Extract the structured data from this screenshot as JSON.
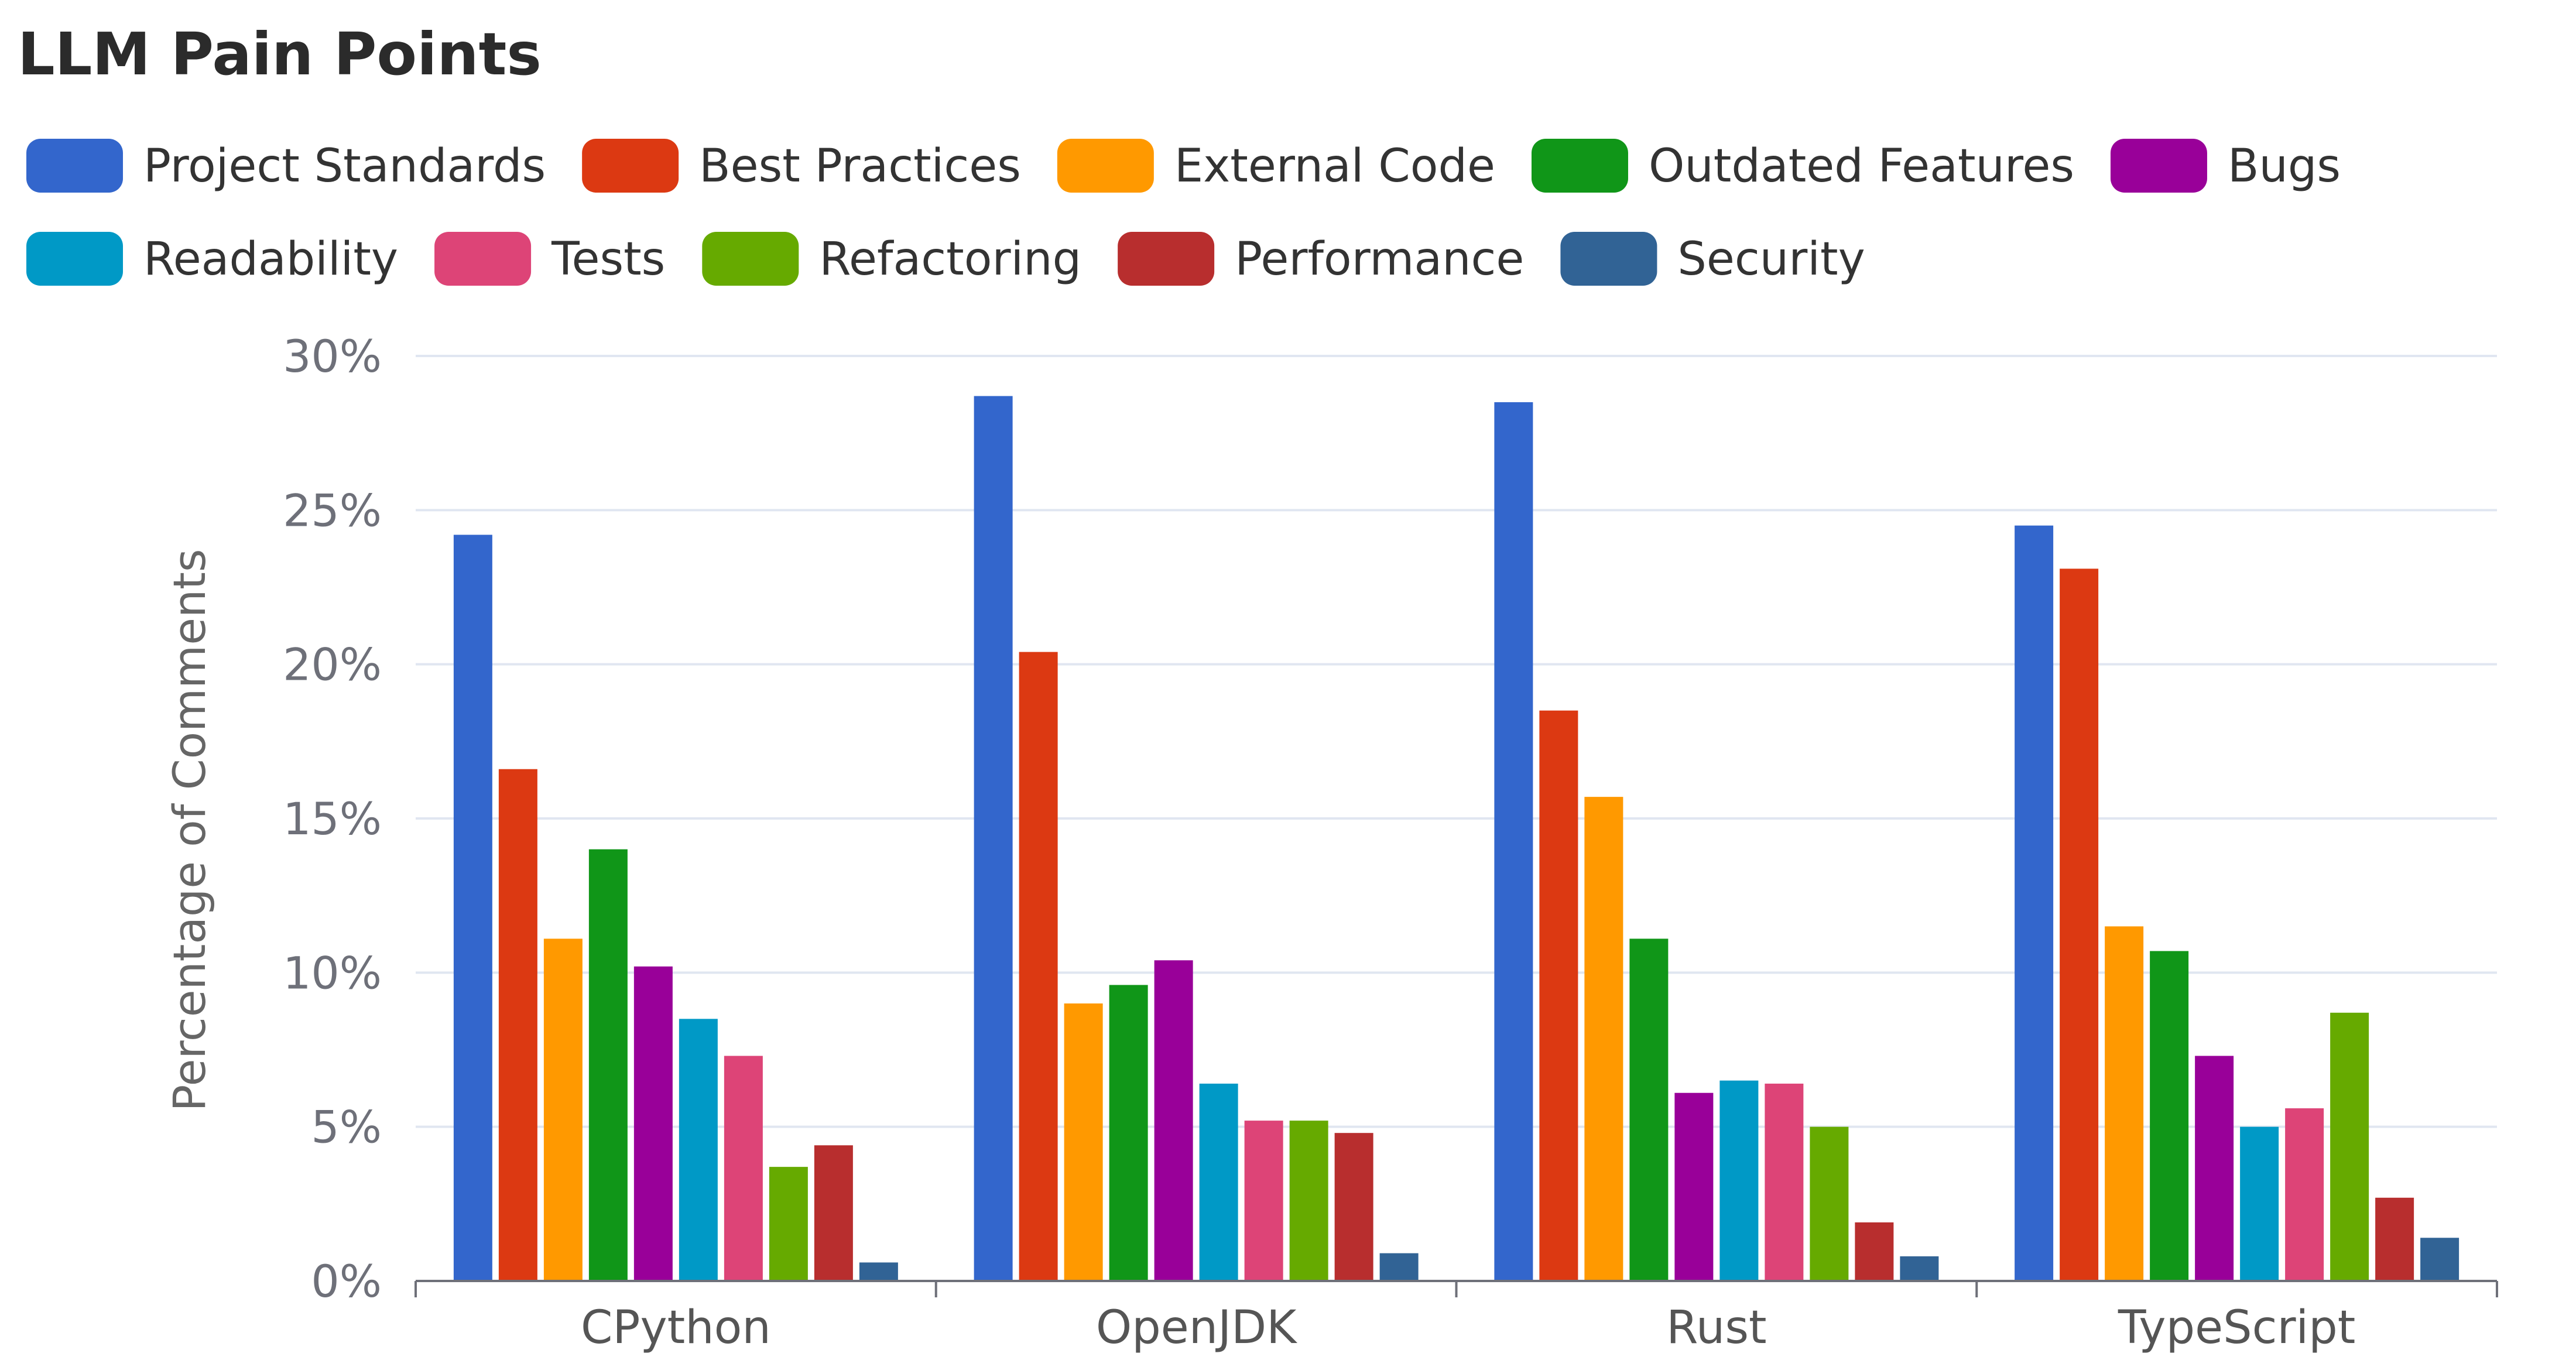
{
  "chart_data": {
    "type": "bar",
    "title": "LLM Pain Points",
    "xlabel": "",
    "ylabel": "Percentage of Comments",
    "ylim": [
      0,
      30
    ],
    "yticks": [
      0,
      5,
      10,
      15,
      20,
      25,
      30
    ],
    "ytick_labels": [
      "0%",
      "5%",
      "10%",
      "15%",
      "20%",
      "25%",
      "30%"
    ],
    "grid": true,
    "legend_position": "top-left",
    "categories": [
      "CPython",
      "OpenJDK",
      "Rust",
      "TypeScript"
    ],
    "series": [
      {
        "name": "Project Standards",
        "color": "#3366CC",
        "values": [
          24.2,
          28.7,
          28.5,
          24.5
        ]
      },
      {
        "name": "Best Practices",
        "color": "#DC3912",
        "values": [
          16.6,
          20.4,
          18.5,
          23.1
        ]
      },
      {
        "name": "External Code",
        "color": "#FF9900",
        "values": [
          11.1,
          9.0,
          15.7,
          11.5
        ]
      },
      {
        "name": "Outdated Features",
        "color": "#109618",
        "values": [
          14.0,
          9.6,
          11.1,
          10.7
        ]
      },
      {
        "name": "Bugs",
        "color": "#990099",
        "values": [
          10.2,
          10.4,
          6.1,
          7.3
        ]
      },
      {
        "name": "Readability",
        "color": "#0099C6",
        "values": [
          8.5,
          6.4,
          6.5,
          5.0
        ]
      },
      {
        "name": "Tests",
        "color": "#DD4477",
        "values": [
          7.3,
          5.2,
          6.4,
          5.6
        ]
      },
      {
        "name": "Refactoring",
        "color": "#66AA00",
        "values": [
          3.7,
          5.2,
          5.0,
          8.7
        ]
      },
      {
        "name": "Performance",
        "color": "#B82E2E",
        "values": [
          4.4,
          4.8,
          1.9,
          2.7
        ]
      },
      {
        "name": "Security",
        "color": "#316395",
        "values": [
          0.6,
          0.9,
          0.8,
          1.4
        ]
      }
    ]
  }
}
